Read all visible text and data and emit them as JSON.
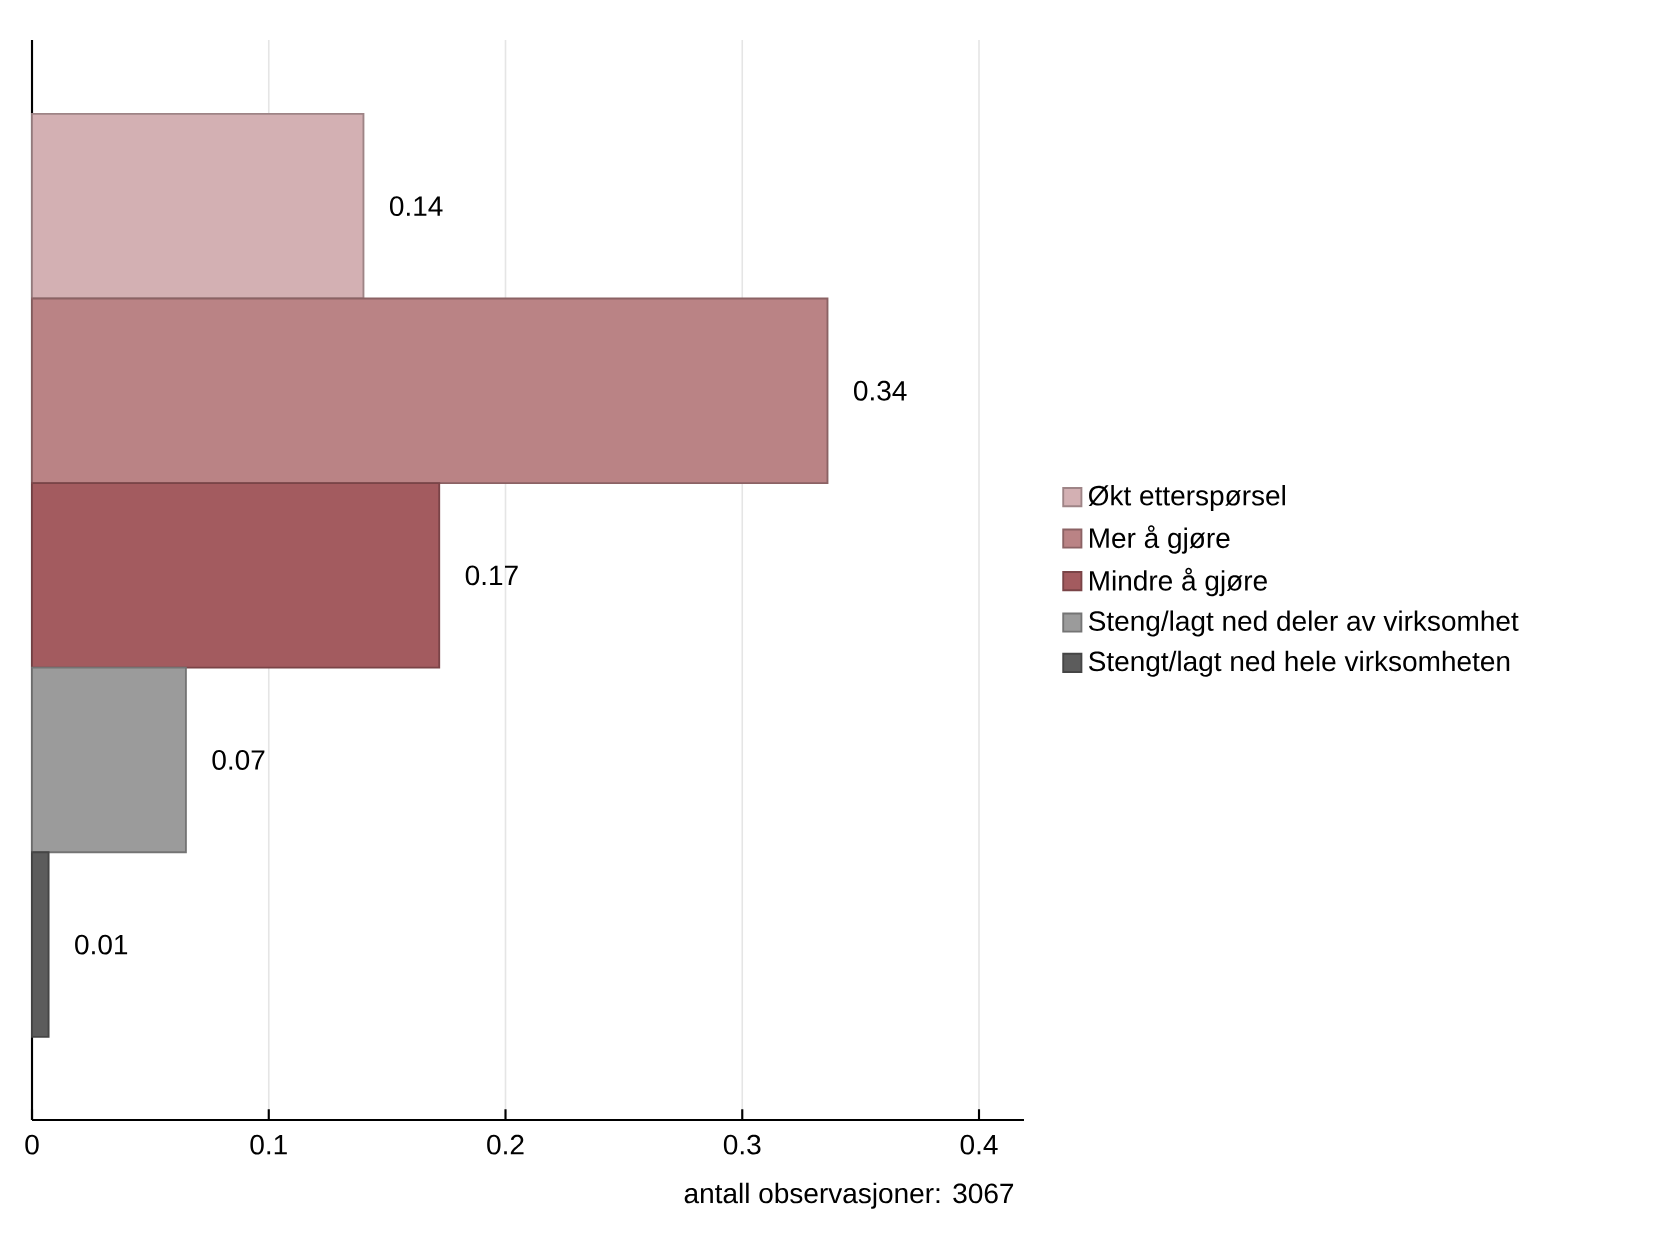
{
  "chart_data": {
    "type": "bar",
    "orientation": "horizontal",
    "categories": [
      null
    ],
    "series": [
      {
        "name": "Økt etterspørsel",
        "color": "#d3b0b3",
        "values": [
          0.14
        ],
        "value_labels": [
          "0.14"
        ]
      },
      {
        "name": "Mer å gjøre",
        "color": "#ba8385",
        "values": [
          0.336
        ],
        "value_labels": [
          "0.34"
        ]
      },
      {
        "name": "Mindre å gjøre",
        "color": "#a35b5f",
        "values": [
          0.172
        ],
        "value_labels": [
          "0.17"
        ]
      },
      {
        "name": "Steng/lagt ned deler av virksomhet",
        "color": "#9b9b9b",
        "values": [
          0.065
        ],
        "value_labels": [
          "0.07"
        ]
      },
      {
        "name": "Stengt/lagt ned hele virksomheten",
        "color": "#5c5c5c",
        "values": [
          0.007
        ],
        "value_labels": [
          "0.01"
        ]
      }
    ],
    "xlim": [
      0,
      0.419
    ],
    "xticks": [
      0,
      0.1,
      0.2,
      0.3,
      0.4
    ],
    "grid": "x",
    "legend": "right",
    "annotations": [
      "antall observasjoner: 3067"
    ]
  }
}
